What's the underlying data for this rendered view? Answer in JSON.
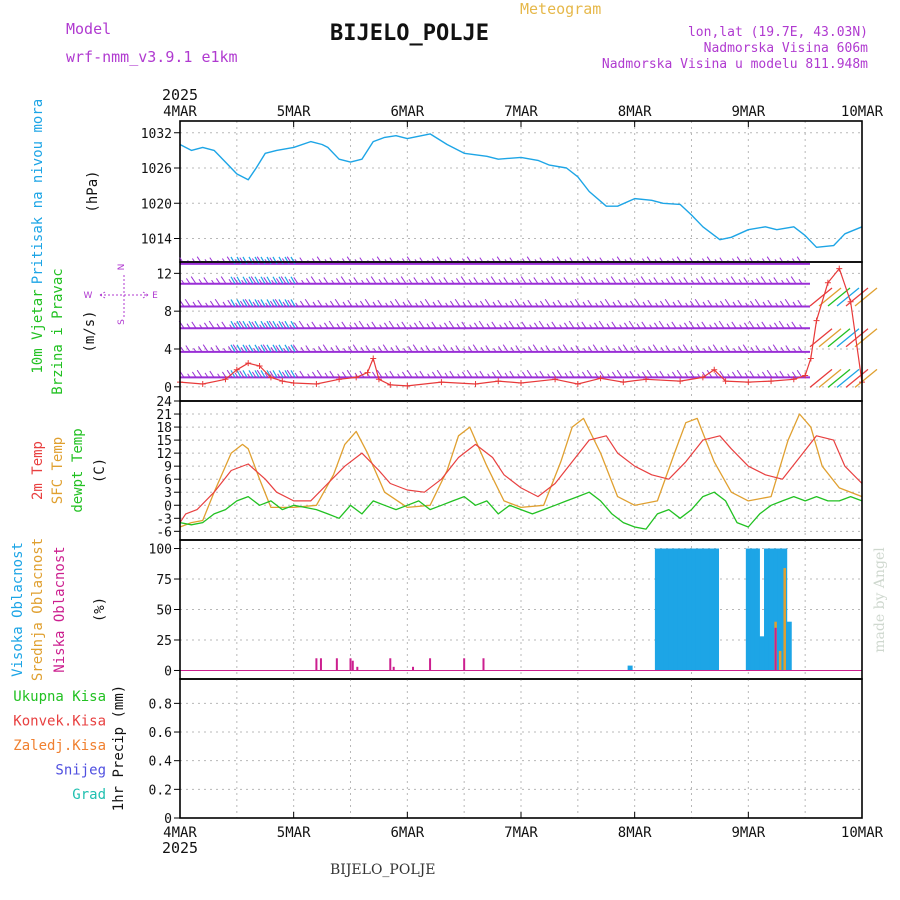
{
  "header": {
    "model_label": "Model",
    "model_name": "wrf-nmm_v3.9.1 e1km",
    "title": "BIJELO_POLJE",
    "subtitle": "Meteogram",
    "lonlat": "lon,lat (19.7E, 43.03N)",
    "elevation": "Nadmorska Visina 606m",
    "model_elevation": "Nadmorska Visina u modelu 811.948m",
    "footer_station": "BIJELO_POLJE",
    "credit": "made by Angel"
  },
  "colors": {
    "pressure": "#1da5e6",
    "wind_speed": "#e83a3a",
    "wind_barb": "#9a2fd6",
    "temp2m": "#e84040",
    "sfc_temp": "#e0a030",
    "dewpoint": "#22c122",
    "cloud_high": "#1da5e6",
    "cloud_mid": "#e0a030",
    "cloud_low": "#cc1f8f",
    "purple_text": "#b03ad0",
    "orange_text": "#e6b84a"
  },
  "chart_data": {
    "type": "line",
    "x_axis": {
      "year": "2025",
      "tick_labels": [
        "4MAR",
        "5MAR",
        "6MAR",
        "7MAR",
        "8MAR",
        "9MAR",
        "10MAR"
      ],
      "range_days": [
        0,
        6
      ]
    },
    "panels": [
      {
        "id": "pressure",
        "labels": [
          "Pritisak na nivou mora"
        ],
        "unit": "(hPa)",
        "yticks": [
          1014,
          1020,
          1026,
          1032
        ],
        "ylim": [
          1010,
          1034
        ],
        "series": [
          {
            "name": "Pritisak na nivou mora",
            "x": [
              0,
              0.1,
              0.2,
              0.3,
              0.4,
              0.5,
              0.6,
              0.67,
              0.75,
              0.85,
              1.0,
              1.15,
              1.25,
              1.3,
              1.4,
              1.5,
              1.6,
              1.7,
              1.8,
              1.9,
              2.0,
              2.2,
              2.35,
              2.5,
              2.7,
              2.8,
              3.0,
              3.15,
              3.25,
              3.4,
              3.5,
              3.6,
              3.75,
              3.85,
              4.0,
              4.15,
              4.25,
              4.4,
              4.5,
              4.6,
              4.75,
              4.85,
              5.0,
              5.15,
              5.25,
              5.4,
              5.5,
              5.6,
              5.75,
              5.85,
              6.0
            ],
            "values": [
              1030.0,
              1029.0,
              1029.5,
              1029.0,
              1027.0,
              1025.0,
              1024.0,
              1026.0,
              1028.5,
              1029.0,
              1029.5,
              1030.5,
              1030.0,
              1029.5,
              1027.5,
              1027.0,
              1027.5,
              1030.5,
              1031.2,
              1031.5,
              1031.0,
              1031.8,
              1030.0,
              1028.5,
              1028.0,
              1027.5,
              1027.8,
              1027.3,
              1026.5,
              1026.0,
              1024.5,
              1022.0,
              1019.5,
              1019.5,
              1020.8,
              1020.5,
              1020.0,
              1019.8,
              1018.0,
              1016.0,
              1013.8,
              1014.2,
              1015.5,
              1016.0,
              1015.5,
              1016.0,
              1014.5,
              1012.5,
              1012.8,
              1014.8,
              1016.0
            ]
          }
        ]
      },
      {
        "id": "wind",
        "labels": [
          "10m Vjetar",
          "Brzina i Pravac"
        ],
        "unit": "(m/s)",
        "compass": {
          "n": "N",
          "s": "S",
          "w": "W",
          "e": "E"
        },
        "yticks": [
          0,
          4,
          8,
          12
        ],
        "ylim": [
          -1.5,
          13.2
        ],
        "barb_levels": [
          1,
          3.7,
          6.2,
          8.5,
          10.9,
          13
        ],
        "series": [
          {
            "name": "wind speed",
            "x": [
              0,
              0.2,
              0.4,
              0.5,
              0.6,
              0.7,
              0.8,
              0.9,
              1.0,
              1.2,
              1.4,
              1.55,
              1.65,
              1.7,
              1.75,
              1.85,
              2.0,
              2.3,
              2.6,
              2.8,
              3.0,
              3.3,
              3.5,
              3.7,
              3.9,
              4.1,
              4.4,
              4.6,
              4.7,
              4.8,
              5.0,
              5.2,
              5.4,
              5.5,
              5.55,
              5.6,
              5.7,
              5.8,
              5.9,
              6.0
            ],
            "values": [
              0.5,
              0.3,
              0.8,
              1.8,
              2.5,
              2.2,
              1.0,
              0.6,
              0.4,
              0.3,
              0.8,
              1.0,
              1.5,
              3.0,
              0.8,
              0.2,
              0.1,
              0.5,
              0.3,
              0.6,
              0.4,
              0.8,
              0.3,
              0.9,
              0.5,
              0.8,
              0.6,
              1.0,
              1.8,
              0.6,
              0.5,
              0.6,
              0.8,
              1.2,
              3.0,
              7.0,
              11.0,
              12.5,
              9.0,
              0.5
            ]
          }
        ]
      },
      {
        "id": "temperature",
        "labels": [
          "2m Temp",
          "SFC Temp",
          "dewpt Temp"
        ],
        "unit": "(C)",
        "yticks": [
          -6,
          -3,
          0,
          3,
          6,
          9,
          12,
          15,
          18,
          21,
          24
        ],
        "ylim": [
          -8,
          24
        ],
        "series": [
          {
            "name": "2m Temp",
            "x": [
              0,
              0.05,
              0.15,
              0.3,
              0.45,
              0.6,
              0.75,
              0.85,
              1.0,
              1.15,
              1.3,
              1.45,
              1.6,
              1.75,
              1.85,
              2.0,
              2.15,
              2.3,
              2.45,
              2.6,
              2.75,
              2.85,
              3.0,
              3.15,
              3.3,
              3.45,
              3.6,
              3.75,
              3.85,
              4.0,
              4.15,
              4.3,
              4.45,
              4.6,
              4.75,
              4.85,
              5.0,
              5.15,
              5.3,
              5.45,
              5.6,
              5.75,
              5.85,
              6.0
            ],
            "values": [
              -4,
              -2,
              -1,
              3,
              8,
              9.5,
              6,
              3,
              1,
              1,
              5,
              9,
              12,
              8,
              5,
              3.5,
              3,
              6,
              11,
              14,
              11,
              7,
              4,
              2,
              5,
              10,
              15,
              16,
              12,
              9,
              7,
              6,
              10,
              15,
              16,
              13,
              9,
              7,
              6,
              11,
              16,
              15,
              9,
              5
            ]
          },
          {
            "name": "SFC Temp",
            "x": [
              0,
              0.1,
              0.2,
              0.3,
              0.45,
              0.55,
              0.6,
              0.7,
              0.8,
              1.0,
              1.2,
              1.35,
              1.45,
              1.55,
              1.65,
              1.8,
              2.0,
              2.2,
              2.35,
              2.45,
              2.55,
              2.7,
              2.85,
              3.0,
              3.2,
              3.35,
              3.45,
              3.55,
              3.7,
              3.85,
              4.0,
              4.2,
              4.35,
              4.45,
              4.55,
              4.7,
              4.85,
              5.0,
              5.2,
              5.35,
              5.45,
              5.55,
              5.65,
              5.8,
              6.0
            ],
            "values": [
              -5,
              -4,
              -3.5,
              3,
              12,
              14,
              13,
              6,
              -0.5,
              -0.5,
              0,
              7,
              14,
              17,
              12,
              3,
              -0.5,
              0,
              8,
              16,
              18,
              9,
              1,
              -0.5,
              0,
              10,
              18,
              20,
              12,
              2,
              0,
              1,
              12,
              19,
              20,
              10,
              3,
              1,
              2,
              15,
              21,
              18,
              9,
              4,
              2
            ]
          },
          {
            "name": "dewpt Temp",
            "x": [
              0,
              0.1,
              0.2,
              0.3,
              0.4,
              0.5,
              0.6,
              0.7,
              0.8,
              0.9,
              1.0,
              1.1,
              1.2,
              1.3,
              1.4,
              1.5,
              1.6,
              1.7,
              1.8,
              1.9,
              2.0,
              2.1,
              2.2,
              2.3,
              2.4,
              2.5,
              2.6,
              2.7,
              2.8,
              2.9,
              3.0,
              3.1,
              3.2,
              3.3,
              3.4,
              3.5,
              3.6,
              3.7,
              3.8,
              3.9,
              4.0,
              4.1,
              4.2,
              4.3,
              4.4,
              4.5,
              4.6,
              4.7,
              4.8,
              4.9,
              5.0,
              5.1,
              5.2,
              5.3,
              5.4,
              5.5,
              5.6,
              5.7,
              5.8,
              5.9,
              6.0
            ],
            "values": [
              -4,
              -4.5,
              -4,
              -2,
              -1,
              1,
              2,
              0,
              1,
              -1,
              0,
              -0.5,
              -1,
              -2,
              -3,
              0,
              -2,
              1,
              0,
              -1,
              0,
              1,
              -1,
              0,
              1,
              2,
              0,
              1,
              -2,
              0,
              -1,
              -2,
              -1,
              0,
              1,
              2,
              3,
              1,
              -2,
              -4,
              -5,
              -5.5,
              -2,
              -1,
              -3,
              -1,
              2,
              3,
              1,
              -4,
              -5,
              -2,
              0,
              1,
              2,
              1,
              2,
              1,
              1,
              2,
              1
            ]
          }
        ]
      },
      {
        "id": "cloud",
        "labels": [
          "Visoka Oblacnost",
          "Srednja Oblacnost",
          "Niska Oblacnost"
        ],
        "unit": "(%)",
        "yticks": [
          0,
          25,
          50,
          75,
          100
        ],
        "ylim": [
          -7,
          107
        ],
        "series": [
          {
            "name": "Visoka Oblacnost",
            "x": [
              3.96,
              4.2,
              4.24,
              4.28,
              4.32,
              4.36,
              4.4,
              4.44,
              4.48,
              4.52,
              4.56,
              4.6,
              4.64,
              4.68,
              4.72,
              5.0,
              5.04,
              5.08,
              5.12,
              5.16,
              5.2,
              5.24,
              5.28,
              5.32,
              5.36
            ],
            "values": [
              4,
              100,
              100,
              100,
              100,
              100,
              100,
              100,
              100,
              100,
              100,
              100,
              100,
              100,
              100,
              100,
              100,
              100,
              28,
              100,
              100,
              100,
              100,
              100,
              40
            ]
          },
          {
            "name": "Srednja Oblacnost",
            "x": [
              5.24,
              5.28,
              5.32
            ],
            "values": [
              40,
              16,
              84
            ]
          },
          {
            "name": "Niska Oblacnost",
            "x": [
              1.2,
              1.24,
              1.38,
              1.5,
              1.52,
              1.56,
              1.85,
              1.88,
              2.05,
              2.2,
              2.5,
              2.67,
              5.24
            ],
            "values": [
              10,
              10,
              10,
              10,
              8,
              3,
              10,
              3,
              3,
              10,
              10,
              10,
              35
            ]
          }
        ]
      },
      {
        "id": "precip",
        "labels": [
          "Ukupna Kisa",
          "Konvek.Kisa",
          "Zaledj.Kisa",
          "Snijeg",
          "Grad"
        ],
        "unit": "1hr Precip (mm)",
        "yticks": [
          0,
          0.2,
          0.4,
          0.6,
          0.8
        ],
        "ylim": [
          0,
          0.97
        ],
        "series": []
      }
    ]
  }
}
